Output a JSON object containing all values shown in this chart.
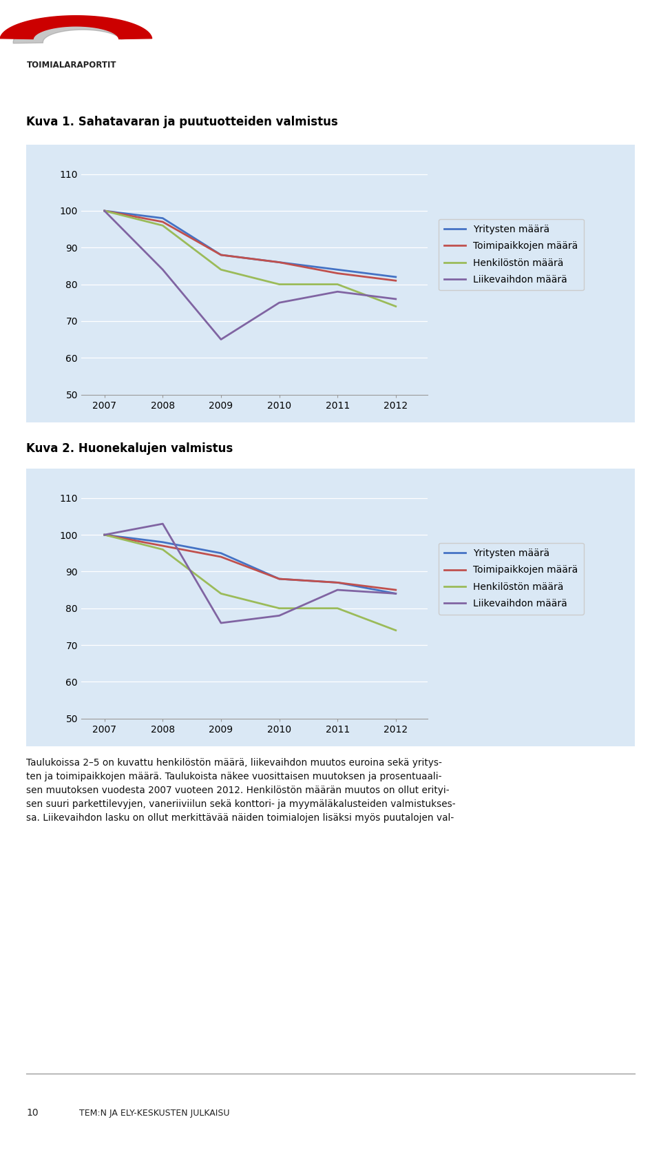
{
  "chart1": {
    "title": "Kuva 1. Sahatavaran ja puutuotteiden valmistus",
    "years": [
      2007,
      2008,
      2009,
      2010,
      2011,
      2012
    ],
    "yritykset": [
      100,
      98,
      88,
      86,
      84,
      82
    ],
    "toimipaikat": [
      100,
      97,
      88,
      86,
      83,
      81
    ],
    "henkilosto": [
      100,
      96,
      84,
      80,
      80,
      74
    ],
    "liikevaihto": [
      100,
      84,
      65,
      75,
      78,
      76
    ]
  },
  "chart2": {
    "title": "Kuva 2. Huonekalujen valmistus",
    "years": [
      2007,
      2008,
      2009,
      2010,
      2011,
      2012
    ],
    "yritykset": [
      100,
      98,
      95,
      88,
      87,
      84
    ],
    "toimipaikat": [
      100,
      97,
      94,
      88,
      87,
      85
    ],
    "henkilosto": [
      100,
      96,
      84,
      80,
      80,
      74
    ],
    "liikevaihto": [
      100,
      103,
      76,
      78,
      85,
      84
    ]
  },
  "colors": {
    "yritykset": "#4472C4",
    "toimipaikat": "#C0504D",
    "henkilosto": "#9BBB59",
    "liikevaihto": "#8064A2"
  },
  "legend_labels": [
    "Yritysten määrä",
    "Toimipaikkojen määrä",
    "Henkilöstön määrä",
    "Liikevaihdon määrä"
  ],
  "ylim": [
    50,
    115
  ],
  "yticks": [
    50,
    60,
    70,
    80,
    90,
    100,
    110
  ],
  "chart_bg": "#DAE8F5",
  "page_bg": "#FFFFFF",
  "title1_fontsize": 12,
  "axis_fontsize": 10,
  "legend_fontsize": 10,
  "line_width": 2.0,
  "footer_text_lines": [
    "Taulukoissa 2–5 on kuvattu henkilöstön määrä, liikevaihdon muutos euroina sekä yritys-",
    "ten ja toimipaikkojen määrä. Taulukoista näkee vuosittaisen muutoksen ja prosentuaali-",
    "sen muutoksen vuodesta 2007 vuoteen 2012. Henkilöstön määrän muutos on ollut erityi-",
    "sen suuri parkettilevyjen, vaneriiviilun sekä konttori- ja myymäläkalusteiden valmistukses-",
    "sa. Liikevaihdon lasku on ollut merkittävää näiden toimialojen lisäksi myös puutalojen val-"
  ],
  "page_number": "10",
  "page_footer_label": "TEM:N JA ELY-KESKUSTEN JULKAISU"
}
